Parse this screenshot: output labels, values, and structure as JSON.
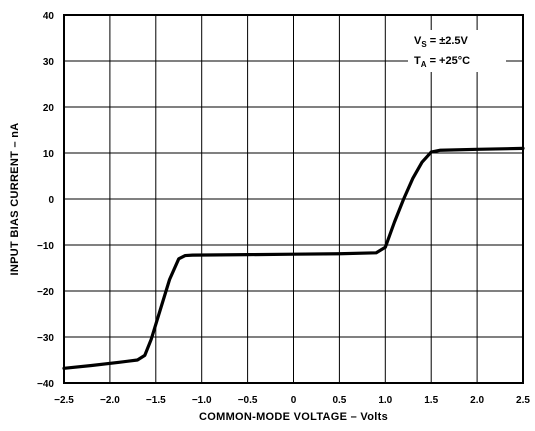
{
  "chart_data": {
    "type": "line",
    "title": "",
    "xlabel": "COMMON-MODE VOLTAGE – Volts",
    "ylabel": "INPUT BIAS CURRENT – nA",
    "xlim": [
      -2.5,
      2.5
    ],
    "ylim": [
      -40,
      40
    ],
    "x_ticks": [
      -2.5,
      -2.0,
      -1.5,
      -1.0,
      -0.5,
      0,
      0.5,
      1.0,
      1.5,
      2.0,
      2.5
    ],
    "x_tick_labels": [
      "−2.5",
      "−2.0",
      "−1.5",
      "−1.0",
      "−0.5",
      "0",
      "0.5",
      "1.0",
      "1.5",
      "2.0",
      "2.5"
    ],
    "y_ticks": [
      -40,
      -30,
      -20,
      -10,
      0,
      10,
      20,
      30,
      40
    ],
    "y_tick_labels": [
      "−40",
      "−30",
      "−20",
      "−10",
      "0",
      "10",
      "20",
      "30",
      "40"
    ],
    "grid": true,
    "legend": "none",
    "annotations": {
      "vs": {
        "main": "V",
        "sub": "S",
        "rest": " = ±2.5V"
      },
      "ta": {
        "main": "T",
        "sub": "A",
        "rest": " = +25°C"
      }
    },
    "series": [
      {
        "x": [
          -2.5,
          -2.2,
          -1.9,
          -1.7,
          -1.62,
          -1.55,
          -1.45,
          -1.35,
          -1.25,
          -1.18,
          -1.1,
          -0.5,
          0,
          0.5,
          0.9,
          1.0,
          1.1,
          1.2,
          1.3,
          1.4,
          1.5,
          1.6,
          2.0,
          2.5
        ],
        "y": [
          -36.8,
          -36.2,
          -35.5,
          -35,
          -34,
          -30.5,
          -24,
          -17.5,
          -13,
          -12.3,
          -12.2,
          -12.1,
          -12,
          -11.9,
          -11.7,
          -10.5,
          -5,
          0,
          4.5,
          8,
          10.2,
          10.6,
          10.8,
          11
        ]
      }
    ],
    "colors": {
      "line": "#000000",
      "grid": "#000000",
      "background": "#ffffff"
    }
  }
}
